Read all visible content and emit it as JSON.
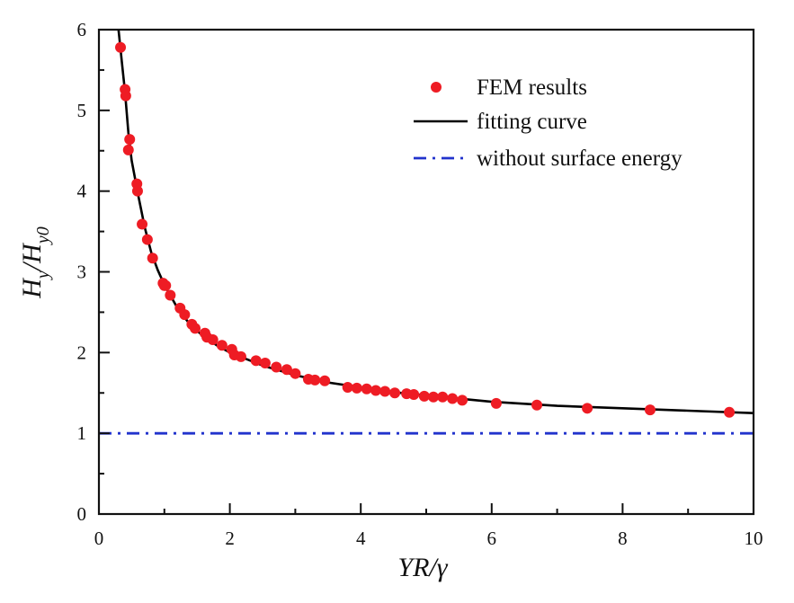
{
  "chart_data": {
    "type": "scatter",
    "title": "",
    "xlabel": "YR/γ",
    "ylabel": "H_y/H_y0",
    "xlabel_parts": [
      "YR/",
      "γ"
    ],
    "ylabel_parts": {
      "main1": "H",
      "sub1": "y",
      "slash": "/",
      "main2": "H",
      "sub2": "y0"
    },
    "xlim": [
      0,
      10
    ],
    "ylim": [
      0,
      6
    ],
    "xticks": [
      0,
      2,
      4,
      6,
      8,
      10
    ],
    "xtick_labels": [
      "0",
      "2",
      "4",
      "6",
      "8",
      "10"
    ],
    "xminor_ticks": [
      1,
      3,
      5,
      7,
      9
    ],
    "yticks": [
      0,
      1,
      2,
      3,
      4,
      5,
      6
    ],
    "ytick_labels": [
      "0",
      "1",
      "2",
      "3",
      "4",
      "5",
      "6"
    ],
    "yminor_ticks": [
      0.5,
      1.5,
      2.5,
      3.5,
      4.5,
      5.5
    ],
    "grid": false,
    "legend_position": "top-right",
    "series": [
      {
        "name": "FEM results",
        "kind": "scatter",
        "color": "#ee1c24",
        "x": [
          0.33,
          0.4,
          0.41,
          0.45,
          0.47,
          0.58,
          0.59,
          0.66,
          0.74,
          0.82,
          0.98,
          1.0,
          1.02,
          1.09,
          1.24,
          1.31,
          1.42,
          1.47,
          1.62,
          1.65,
          1.74,
          1.88,
          2.03,
          2.07,
          2.17,
          2.4,
          2.54,
          2.71,
          2.87,
          3.0,
          3.2,
          3.3,
          3.45,
          3.8,
          3.94,
          4.09,
          4.23,
          4.37,
          4.52,
          4.7,
          4.81,
          4.97,
          5.11,
          5.25,
          5.4,
          5.55,
          6.07,
          6.69,
          7.46,
          8.42,
          9.63
        ],
        "y": [
          5.78,
          5.26,
          5.18,
          4.51,
          4.64,
          4.09,
          4.0,
          3.59,
          3.4,
          3.17,
          2.86,
          2.83,
          2.83,
          2.71,
          2.55,
          2.47,
          2.35,
          2.3,
          2.24,
          2.19,
          2.16,
          2.09,
          2.04,
          1.97,
          1.95,
          1.9,
          1.87,
          1.82,
          1.79,
          1.74,
          1.67,
          1.66,
          1.65,
          1.57,
          1.56,
          1.55,
          1.53,
          1.52,
          1.5,
          1.49,
          1.48,
          1.46,
          1.45,
          1.45,
          1.43,
          1.41,
          1.37,
          1.35,
          1.31,
          1.29,
          1.26
        ]
      },
      {
        "name": "fitting curve",
        "kind": "line",
        "color": "#000000",
        "style": "solid",
        "x": [
          0.3,
          0.35,
          0.4,
          0.45,
          0.5,
          0.6,
          0.7,
          0.8,
          0.9,
          1.0,
          1.2,
          1.4,
          1.6,
          1.8,
          2.0,
          2.5,
          3.0,
          3.5,
          4.0,
          4.5,
          5.0,
          6.0,
          7.0,
          8.0,
          9.0,
          10.0
        ],
        "y": [
          6.0,
          5.6,
          5.22,
          4.72,
          4.38,
          3.95,
          3.55,
          3.24,
          3.02,
          2.84,
          2.55,
          2.34,
          2.2,
          2.09,
          2.0,
          1.84,
          1.72,
          1.63,
          1.57,
          1.51,
          1.47,
          1.39,
          1.34,
          1.31,
          1.28,
          1.25
        ]
      },
      {
        "name": "without surface energy",
        "kind": "line",
        "color": "#2233cc",
        "style": "dash-dot",
        "x": [
          0,
          10
        ],
        "y": [
          1,
          1
        ]
      }
    ]
  }
}
